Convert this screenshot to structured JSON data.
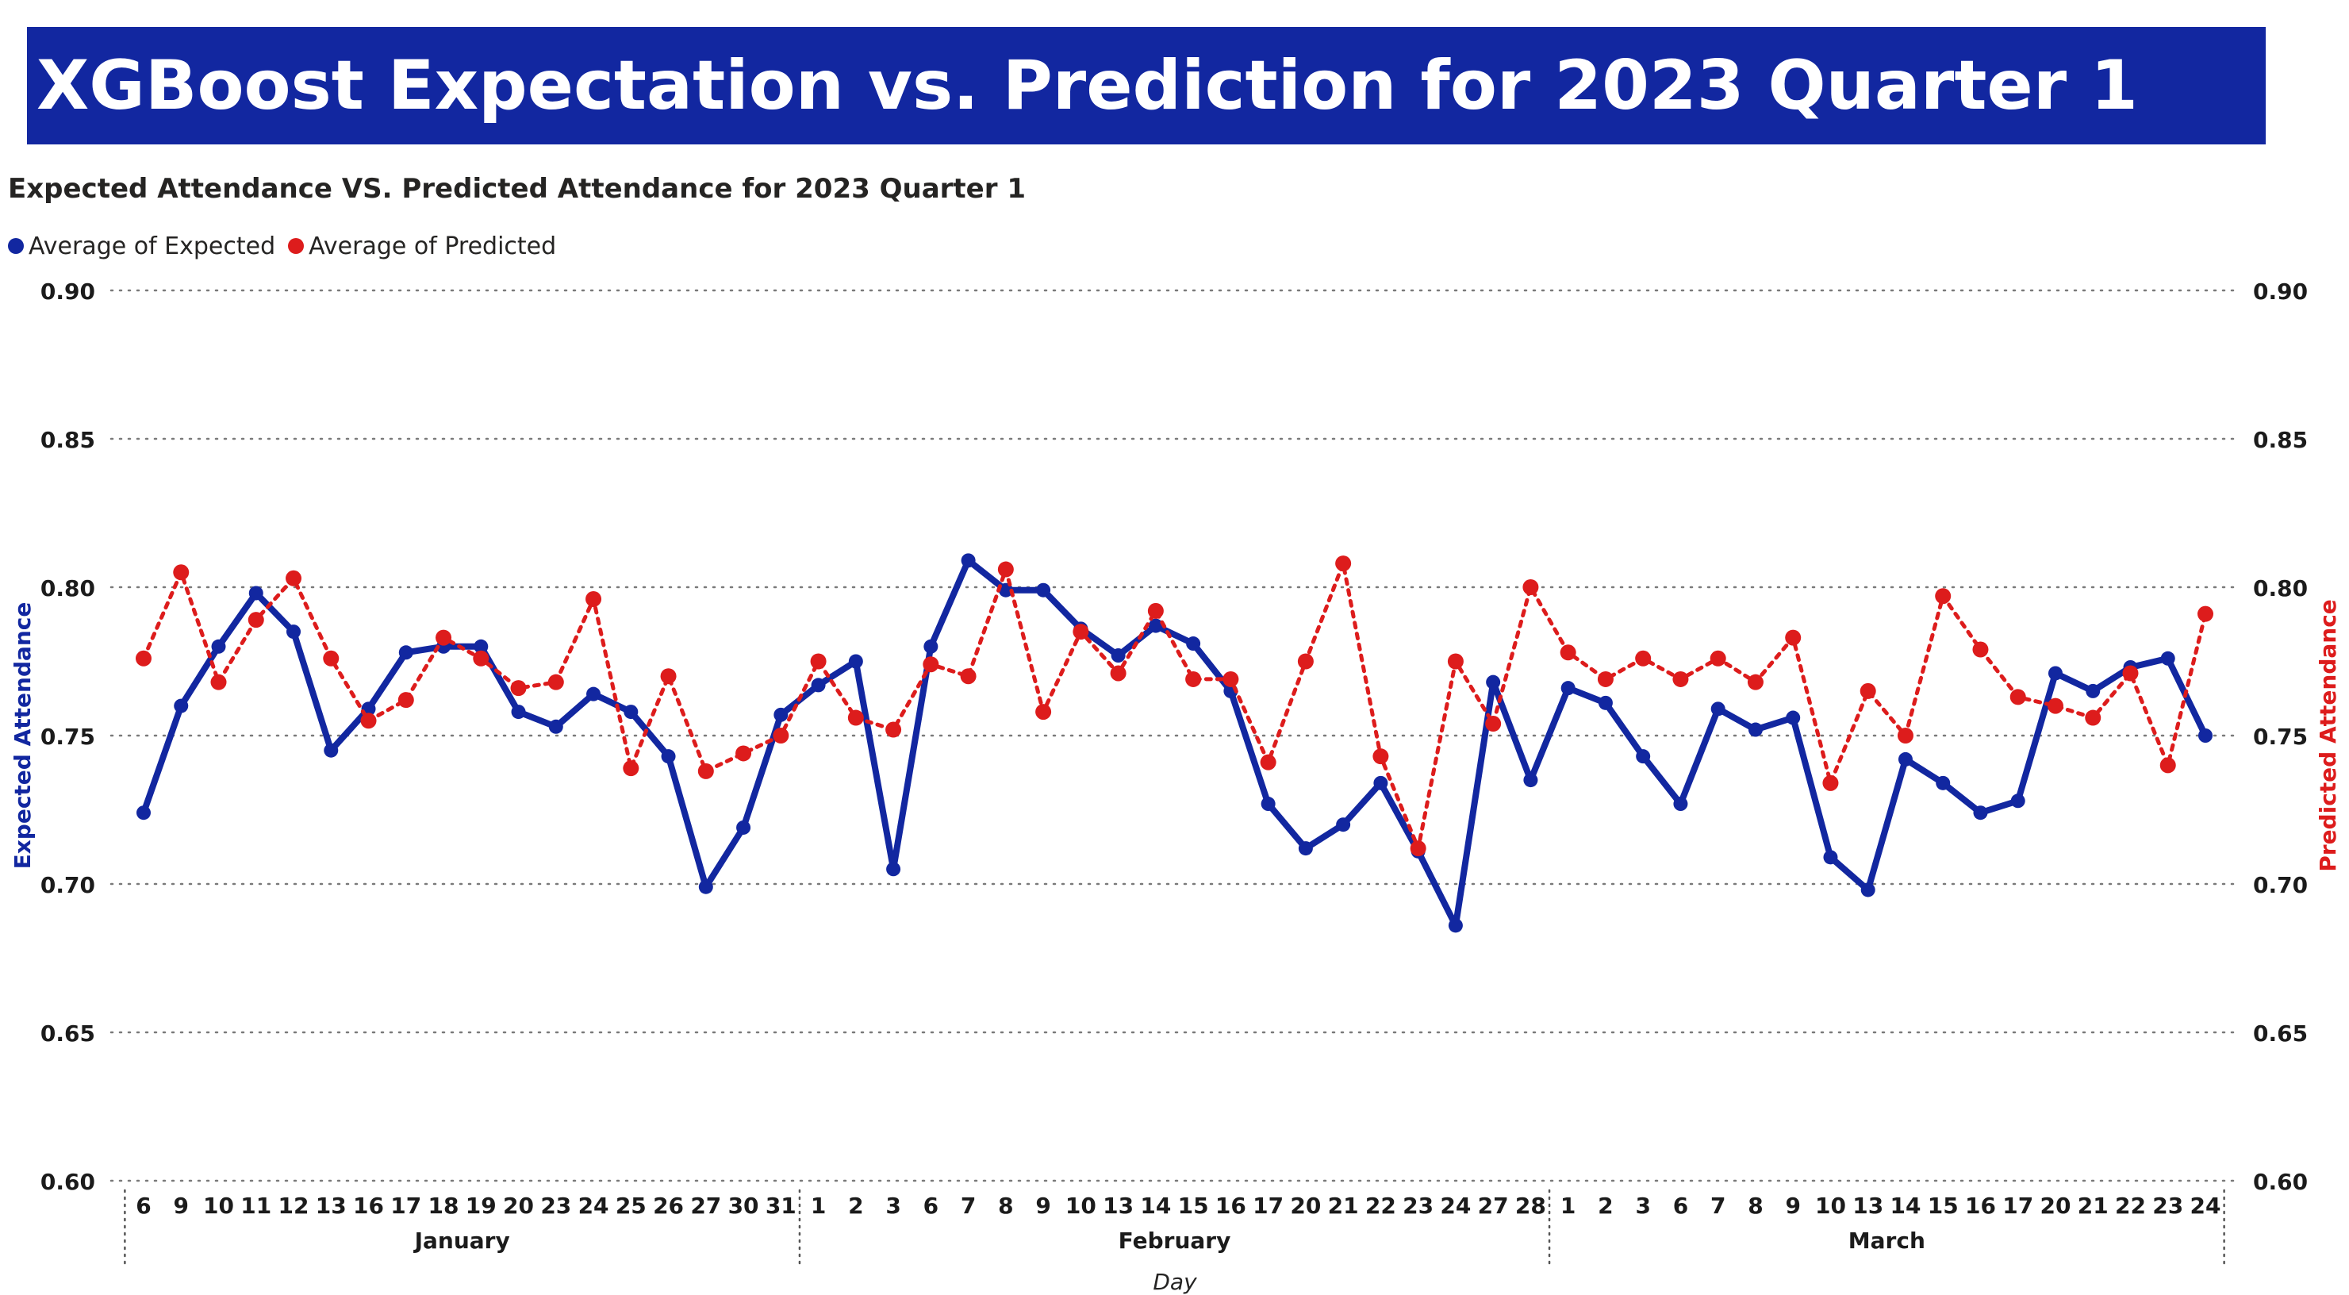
{
  "header": {
    "title": "XGBoost Expectation vs. Prediction for 2023 Quarter 1"
  },
  "colors": {
    "banner": "#1227a0",
    "expected": "#1227a0",
    "predicted": "#dd1c1c"
  },
  "chart_data": {
    "type": "line",
    "title": "Expected Attendance VS. Predicted Attendance for 2023 Quarter 1",
    "xlabel": "Day",
    "ylabel_left": "Expected Attendance",
    "ylabel_right": "Predicted Attendance",
    "ylim": [
      0.6,
      0.9
    ],
    "yticks": [
      "0.60",
      "0.65",
      "0.70",
      "0.75",
      "0.80",
      "0.85",
      "0.90"
    ],
    "grid": true,
    "legend_position": "top-left",
    "months": [
      {
        "name": "January",
        "days": [
          "6",
          "9",
          "10",
          "11",
          "12",
          "13",
          "16",
          "17",
          "18",
          "19",
          "20",
          "23",
          "24",
          "25",
          "26",
          "27",
          "30",
          "31"
        ]
      },
      {
        "name": "February",
        "days": [
          "1",
          "2",
          "3",
          "6",
          "7",
          "8",
          "9",
          "10",
          "13",
          "14",
          "15",
          "16",
          "17",
          "20",
          "21",
          "22",
          "23",
          "24",
          "27",
          "28"
        ]
      },
      {
        "name": "March",
        "days": [
          "1",
          "2",
          "3",
          "6",
          "7",
          "8",
          "9",
          "10",
          "13",
          "14",
          "15",
          "16",
          "17",
          "20",
          "21",
          "22",
          "23",
          "24"
        ]
      }
    ],
    "series": [
      {
        "name": "Average of Expected",
        "axis": "left",
        "style": "solid",
        "values": [
          0.724,
          0.76,
          0.78,
          0.798,
          0.785,
          0.745,
          0.759,
          0.778,
          0.78,
          0.78,
          0.758,
          0.753,
          0.764,
          0.758,
          0.743,
          0.699,
          0.719,
          0.757,
          0.767,
          0.775,
          0.705,
          0.78,
          0.809,
          0.799,
          0.799,
          0.786,
          0.777,
          0.787,
          0.781,
          0.765,
          0.727,
          0.712,
          0.72,
          0.734,
          0.711,
          0.686,
          0.768,
          0.735,
          0.766,
          0.761,
          0.743,
          0.727,
          0.759,
          0.752,
          0.756,
          0.709,
          0.698,
          0.742,
          0.734,
          0.724,
          0.728,
          0.771,
          0.765,
          0.773,
          0.776,
          0.75
        ]
      },
      {
        "name": "Average of Predicted",
        "axis": "right",
        "style": "dotted",
        "values": [
          0.776,
          0.805,
          0.768,
          0.789,
          0.803,
          0.776,
          0.755,
          0.762,
          0.783,
          0.776,
          0.766,
          0.768,
          0.796,
          0.739,
          0.77,
          0.738,
          0.744,
          0.75,
          0.775,
          0.756,
          0.752,
          0.774,
          0.77,
          0.806,
          0.758,
          0.785,
          0.771,
          0.792,
          0.769,
          0.769,
          0.741,
          0.775,
          0.808,
          0.743,
          0.712,
          0.775,
          0.754,
          0.8,
          0.778,
          0.769,
          0.776,
          0.769,
          0.776,
          0.768,
          0.783,
          0.734,
          0.765,
          0.75,
          0.797,
          0.779,
          0.763,
          0.76,
          0.756,
          0.771,
          0.74,
          0.791
        ]
      }
    ]
  }
}
